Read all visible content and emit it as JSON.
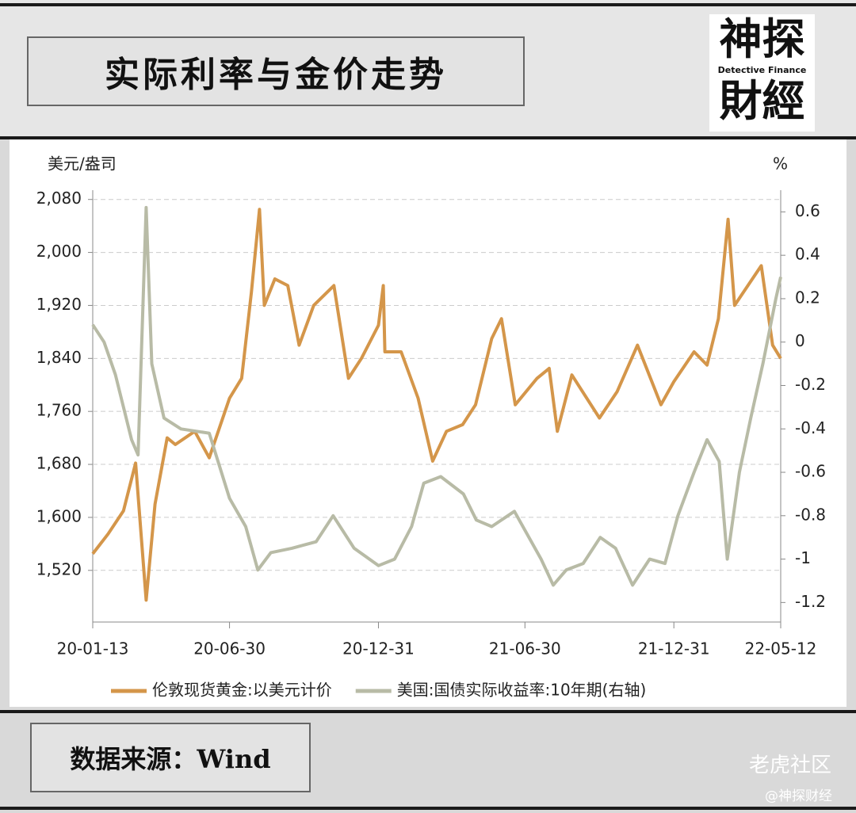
{
  "header": {
    "title": "实际利率与金价走势",
    "logo_top": "神探",
    "logo_middle": "Detective Finance",
    "logo_bottom": "財經"
  },
  "chart_data": {
    "type": "line",
    "y_label": "美元/盎司",
    "y2_label": "%",
    "xlim": [
      "2020-01-13",
      "2022-05-12"
    ],
    "xticks": [
      {
        "value": "2020-01-13",
        "label": "20-01-13"
      },
      {
        "value": "2020-06-30",
        "label": "20-06-30"
      },
      {
        "value": "2020-12-31",
        "label": "20-12-31"
      },
      {
        "value": "2021-06-30",
        "label": "21-06-30"
      },
      {
        "value": "2021-12-31",
        "label": "21-12-31"
      },
      {
        "value": "2022-05-12",
        "label": "22-05-12"
      }
    ],
    "ylim": [
      1442,
      2094
    ],
    "yticks": [
      {
        "value": 1520,
        "label": "1,520"
      },
      {
        "value": 1600,
        "label": "1,600"
      },
      {
        "value": 1680,
        "label": "1,680"
      },
      {
        "value": 1760,
        "label": "1,760"
      },
      {
        "value": 1840,
        "label": "1,840"
      },
      {
        "value": 1920,
        "label": "1,920"
      },
      {
        "value": 2000,
        "label": "2,000"
      },
      {
        "value": 2080,
        "label": "2,080"
      }
    ],
    "y2lim": [
      -1.29,
      0.7
    ],
    "y2ticks": [
      -1.2,
      -1,
      -0.8,
      -0.6,
      -0.4,
      -0.2,
      0,
      0.2,
      0.4,
      0.6
    ],
    "grid": true,
    "series": [
      {
        "name": "伦敦现货黄金:以美元计价",
        "color": "#d4964a",
        "x": [
          "2020-01-13",
          "2020-02-01",
          "2020-02-20",
          "2020-03-06",
          "2020-03-19",
          "2020-03-30",
          "2020-04-14",
          "2020-04-24",
          "2020-05-18",
          "2020-06-05",
          "2020-06-30",
          "2020-07-15",
          "2020-07-27",
          "2020-08-06",
          "2020-08-12",
          "2020-08-25",
          "2020-09-10",
          "2020-09-24",
          "2020-10-12",
          "2020-11-06",
          "2020-11-24",
          "2020-12-10",
          "2020-12-31",
          "2021-01-06",
          "2021-01-08",
          "2021-01-28",
          "2021-02-18",
          "2021-03-08",
          "2021-03-25",
          "2021-04-14",
          "2021-04-30",
          "2021-05-20",
          "2021-06-01",
          "2021-06-18",
          "2021-07-15",
          "2021-07-30",
          "2021-08-09",
          "2021-08-27",
          "2021-09-30",
          "2021-10-22",
          "2021-11-16",
          "2021-12-15",
          "2021-12-31",
          "2022-01-25",
          "2022-02-10",
          "2022-02-24",
          "2022-03-08",
          "2022-03-16",
          "2022-04-18",
          "2022-05-02",
          "2022-05-12"
        ],
        "values": [
          1545,
          1575,
          1610,
          1682,
          1475,
          1620,
          1720,
          1710,
          1730,
          1690,
          1780,
          1810,
          1940,
          2065,
          1920,
          1960,
          1950,
          1860,
          1920,
          1950,
          1810,
          1840,
          1890,
          1950,
          1850,
          1850,
          1780,
          1685,
          1730,
          1740,
          1770,
          1870,
          1900,
          1770,
          1810,
          1825,
          1730,
          1815,
          1750,
          1790,
          1860,
          1770,
          1805,
          1850,
          1830,
          1900,
          2050,
          1920,
          1980,
          1860,
          1840
        ]
      },
      {
        "name": "美国:国债实际收益率:10年期(右轴)",
        "color": "#b8bba6",
        "axis": "y2",
        "x": [
          "2020-01-13",
          "2020-01-27",
          "2020-02-10",
          "2020-03-01",
          "2020-03-09",
          "2020-03-19",
          "2020-03-26",
          "2020-04-10",
          "2020-05-01",
          "2020-06-05",
          "2020-06-30",
          "2020-07-20",
          "2020-08-04",
          "2020-08-20",
          "2020-09-15",
          "2020-10-15",
          "2020-11-05",
          "2020-12-01",
          "2020-12-31",
          "2021-01-20",
          "2021-02-10",
          "2021-02-25",
          "2021-03-18",
          "2021-04-15",
          "2021-05-01",
          "2021-05-20",
          "2021-06-17",
          "2021-07-20",
          "2021-08-04",
          "2021-08-20",
          "2021-09-10",
          "2021-10-01",
          "2021-10-20",
          "2021-11-10",
          "2021-12-01",
          "2021-12-20",
          "2022-01-05",
          "2022-01-25",
          "2022-02-10",
          "2022-02-25",
          "2022-03-07",
          "2022-03-22",
          "2022-04-05",
          "2022-04-20",
          "2022-05-06",
          "2022-05-12"
        ],
        "values": [
          0.08,
          0,
          -0.15,
          -0.45,
          -0.52,
          0.62,
          -0.1,
          -0.35,
          -0.4,
          -0.42,
          -0.72,
          -0.85,
          -1.05,
          -0.97,
          -0.95,
          -0.92,
          -0.8,
          -0.95,
          -1.03,
          -1.0,
          -0.85,
          -0.65,
          -0.62,
          -0.7,
          -0.82,
          -0.85,
          -0.78,
          -1.0,
          -1.12,
          -1.05,
          -1.02,
          -0.9,
          -0.95,
          -1.12,
          -1.0,
          -1.02,
          -0.8,
          -0.6,
          -0.45,
          -0.55,
          -1.0,
          -0.6,
          -0.35,
          -0.1,
          0.2,
          0.3
        ]
      }
    ]
  },
  "footer": {
    "source": "数据来源：Wind",
    "watermark": "老虎社区",
    "credit": "@神探财经"
  }
}
